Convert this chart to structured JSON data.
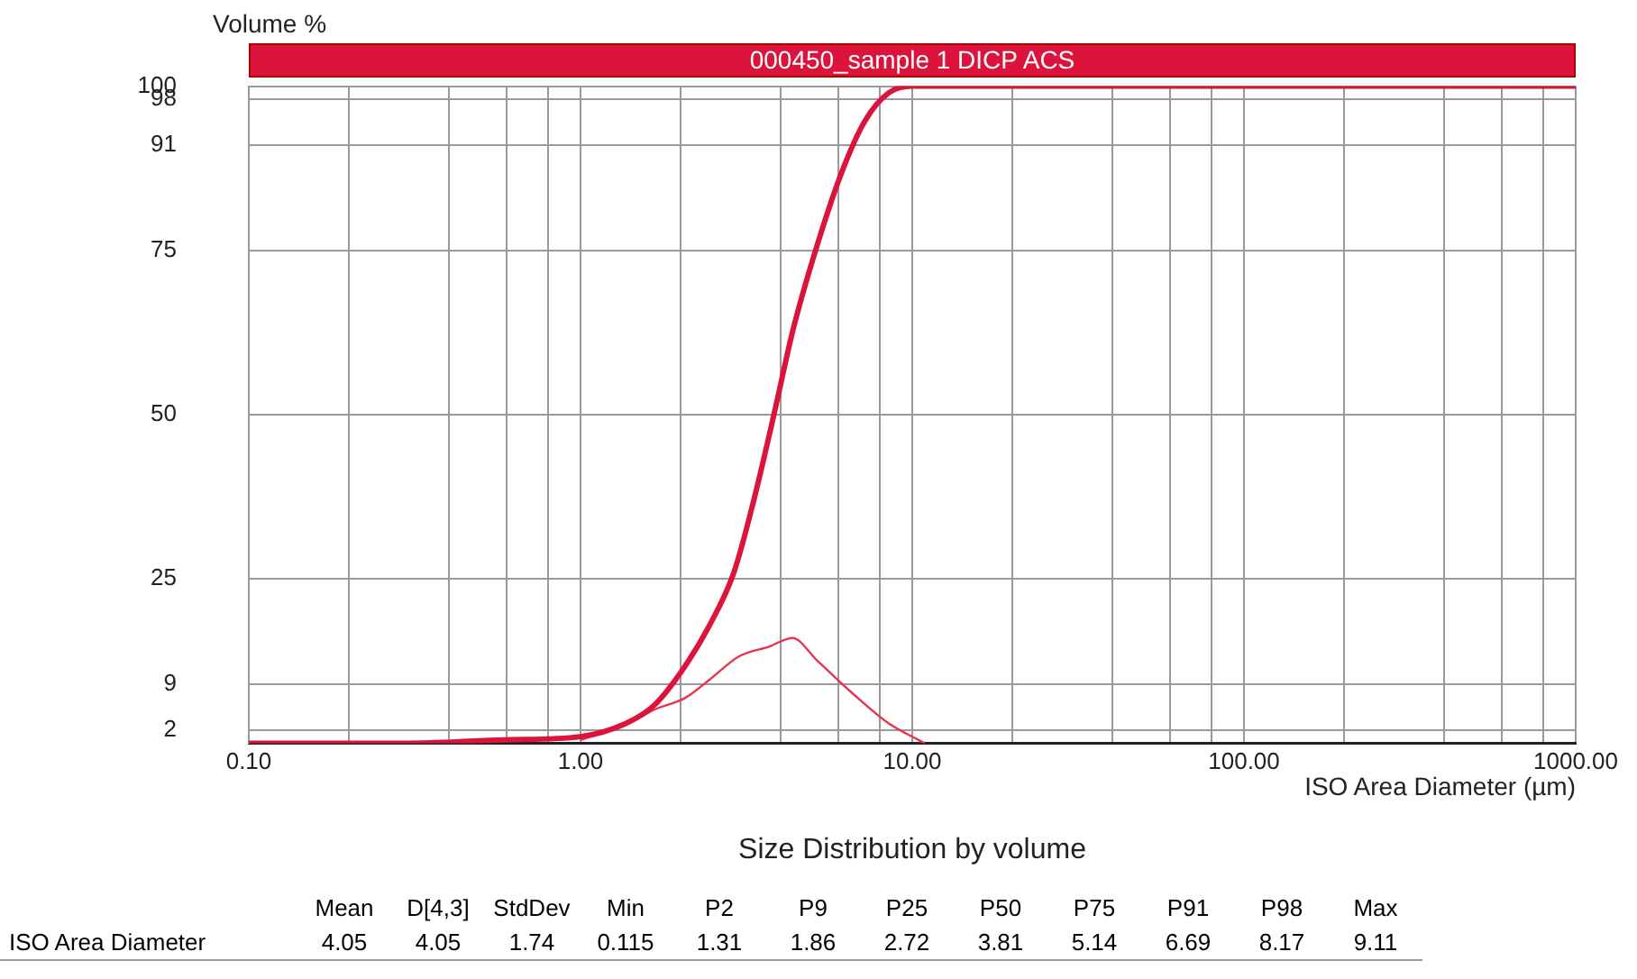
{
  "chart_data": {
    "type": "line",
    "title": "000450_sample 1 DICP ACS",
    "ylabel": "Volume %",
    "xlabel": "ISO Area Diameter (µm)",
    "log": "x",
    "grid": true,
    "legend": false,
    "marker": "none",
    "line_style": "solid",
    "xlim": [
      0.1,
      1000
    ],
    "ylim": [
      0,
      100
    ],
    "xticks": [
      {
        "value": 0.1,
        "label": "0.10"
      },
      {
        "value": 0.2,
        "label": null
      },
      {
        "value": 0.4,
        "label": null
      },
      {
        "value": 0.6,
        "label": null
      },
      {
        "value": 0.8,
        "label": null
      },
      {
        "value": 1,
        "label": "1.00"
      },
      {
        "value": 2,
        "label": null
      },
      {
        "value": 4,
        "label": null
      },
      {
        "value": 6,
        "label": null
      },
      {
        "value": 8,
        "label": null
      },
      {
        "value": 10,
        "label": "10.00"
      },
      {
        "value": 20,
        "label": null
      },
      {
        "value": 40,
        "label": null
      },
      {
        "value": 60,
        "label": null
      },
      {
        "value": 80,
        "label": null
      },
      {
        "value": 100,
        "label": "100.00"
      },
      {
        "value": 200,
        "label": null
      },
      {
        "value": 400,
        "label": null
      },
      {
        "value": 600,
        "label": null
      },
      {
        "value": 800,
        "label": null
      },
      {
        "value": 1000,
        "label": "1000.00"
      }
    ],
    "yticks": [
      2,
      9,
      25,
      50,
      75,
      91,
      98,
      100
    ],
    "series": [
      {
        "color": "#dc143c",
        "x": [
          0.1,
          0.3,
          0.59,
          1,
          1.37,
          1.67,
          2.0,
          2.44,
          2.9,
          3.33,
          3.86,
          4.36,
          5.14,
          6.14,
          7.2,
          8.5,
          10,
          100,
          1000
        ],
        "values": [
          0,
          0,
          0.5,
          1,
          3,
          5.8,
          10.7,
          17.8,
          26,
          37,
          50.8,
          62.7,
          75.4,
          87,
          94.7,
          99,
          100,
          100,
          100
        ]
      },
      {
        "type": "line",
        "color": "#e8344f",
        "x": [
          1,
          1.37,
          1.67,
          2.07,
          2.44,
          3.0,
          3.7,
          4.36,
          5.14,
          6.6,
          8.5,
          10.9
        ],
        "values": [
          0.5,
          2.8,
          5.1,
          6.9,
          9.6,
          13.2,
          14.7,
          16,
          12.7,
          7.6,
          3,
          0
        ]
      }
    ],
    "annotations": [
      "Size Distribution by volume",
      "Mean",
      "D[4,3]",
      "StdDev",
      "Min",
      "P2",
      "P9",
      "P25",
      "P50",
      "P75",
      "P91",
      "P98",
      "Max",
      "ISO Area Diameter",
      "4.05",
      "4.05",
      "1.74",
      "0.115",
      "1.31",
      "1.86",
      "2.72",
      "3.81",
      "5.14",
      "6.69",
      "8.17",
      "9.11"
    ]
  }
}
